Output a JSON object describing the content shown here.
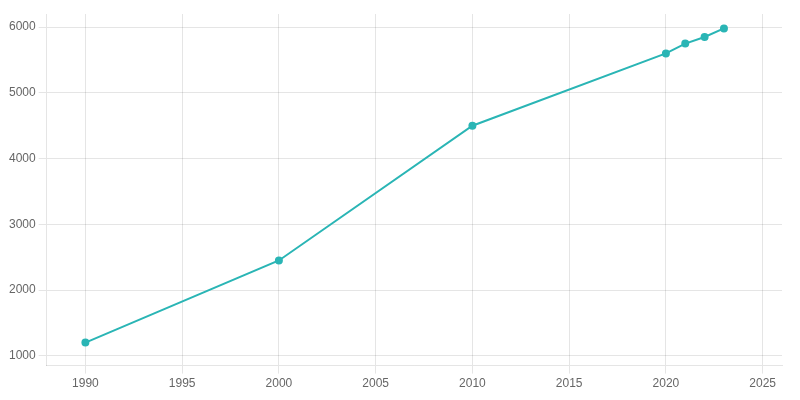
{
  "chart_data": {
    "type": "line",
    "x": [
      1990,
      2000,
      2010,
      2020,
      2021,
      2022,
      2023
    ],
    "values": [
      1200,
      2450,
      4500,
      5600,
      5750,
      5850,
      5980
    ],
    "color": "#2ab5b5",
    "marker": "circle",
    "xlim": [
      1988,
      2026
    ],
    "xticks": [
      1990,
      1995,
      2000,
      2005,
      2010,
      2015,
      2020,
      2025
    ],
    "ylim": [
      850,
      6200
    ],
    "yticks": [
      1000,
      2000,
      3000,
      4000,
      5000,
      6000
    ],
    "grid": true
  }
}
